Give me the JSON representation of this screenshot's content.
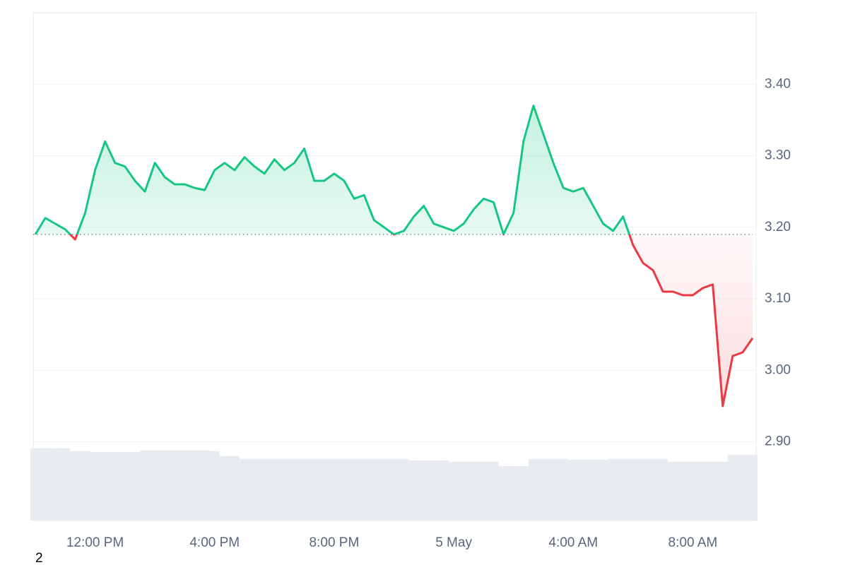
{
  "chart_data": {
    "type": "line",
    "categories": [
      null,
      null,
      null,
      null,
      null,
      null,
      "12:00 PM",
      null,
      null,
      null,
      null,
      null,
      null,
      null,
      null,
      null,
      null,
      null,
      "4:00 PM",
      null,
      null,
      null,
      null,
      null,
      null,
      null,
      null,
      null,
      null,
      null,
      "8:00 PM",
      null,
      null,
      null,
      null,
      null,
      null,
      null,
      null,
      null,
      null,
      null,
      "5 May",
      null,
      null,
      null,
      null,
      null,
      null,
      null,
      null,
      null,
      null,
      null,
      "4:00 AM",
      null,
      null,
      null,
      null,
      null,
      null,
      null,
      null,
      null,
      null,
      null,
      "8:00 AM",
      null,
      null,
      null,
      null,
      null,
      null
    ],
    "values": [
      3.19,
      3.213,
      3.205,
      3.197,
      3.183,
      3.22,
      3.28,
      3.32,
      3.29,
      3.285,
      3.265,
      3.25,
      3.29,
      3.27,
      3.26,
      3.26,
      3.255,
      3.252,
      3.28,
      3.29,
      3.28,
      3.298,
      3.285,
      3.275,
      3.295,
      3.28,
      3.29,
      3.31,
      3.265,
      3.265,
      3.275,
      3.265,
      3.24,
      3.245,
      3.21,
      3.2,
      3.19,
      3.195,
      3.215,
      3.23,
      3.205,
      3.2,
      3.195,
      3.205,
      3.225,
      3.24,
      3.235,
      3.19,
      3.22,
      3.32,
      3.37,
      3.33,
      3.29,
      3.255,
      3.25,
      3.255,
      3.23,
      3.205,
      3.195,
      3.215,
      3.175,
      3.15,
      3.14,
      3.11,
      3.11,
      3.105,
      3.105,
      3.115,
      3.12,
      2.95,
      3.02,
      3.025,
      3.045
    ],
    "baseline": 3.19,
    "up_color": "#16c784",
    "down_color": "#ea3943",
    "ylim": [
      2.79,
      3.5
    ],
    "yticks": [
      {
        "value": 2.9,
        "label": "2.90"
      },
      {
        "value": 3.0,
        "label": "3.00"
      },
      {
        "value": 3.1,
        "label": "3.10"
      },
      {
        "value": 3.2,
        "label": "3.20"
      },
      {
        "value": 3.3,
        "label": "3.30"
      },
      {
        "value": 3.4,
        "label": "3.40"
      }
    ],
    "grid": true,
    "volume": {
      "color": "#e8ecf1",
      "ylim": [
        0,
        710
      ],
      "values": [
        101,
        101,
        101,
        101,
        97,
        97,
        96,
        96,
        96,
        96,
        96,
        98,
        98,
        98,
        98,
        98,
        98,
        98,
        97,
        90,
        90,
        86,
        86,
        86,
        86,
        86,
        86,
        86,
        86,
        86,
        86,
        86,
        86,
        86,
        86,
        86,
        86,
        86,
        84,
        84,
        84,
        84,
        82,
        82,
        82,
        82,
        82,
        76,
        76,
        76,
        86,
        86,
        86,
        86,
        85,
        85,
        85,
        85,
        86,
        86,
        86,
        86,
        86,
        86,
        82,
        82,
        82,
        82,
        82,
        82,
        92,
        92,
        92
      ]
    },
    "footnote": "2"
  }
}
